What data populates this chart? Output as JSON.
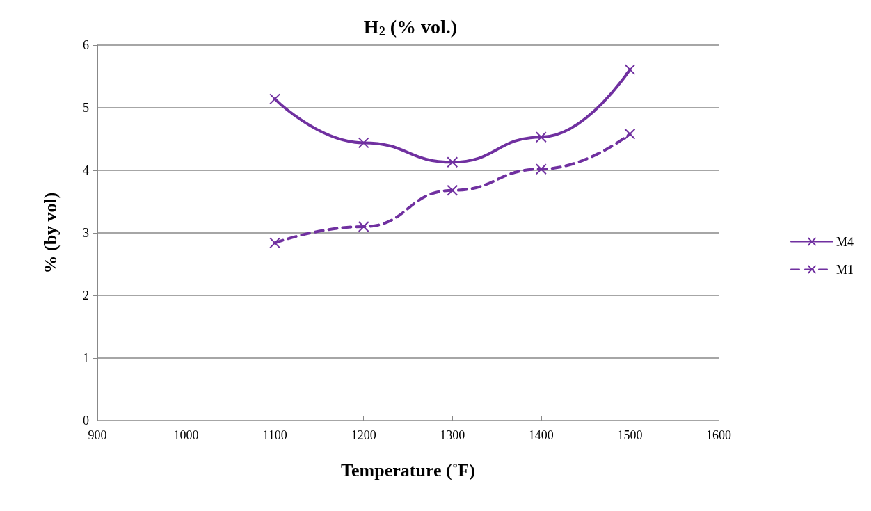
{
  "chart_data": {
    "type": "line",
    "title": "H$_{2}$ (% vol.)",
    "xlabel": "Temperature (˚F)",
    "ylabel": "% (by vol)",
    "x": [
      1100,
      1200,
      1300,
      1400,
      1500
    ],
    "series": [
      {
        "name": "M4",
        "color": "#7030a0",
        "line_style": "solid",
        "values": [
          5.14,
          4.44,
          4.13,
          4.53,
          5.61
        ]
      },
      {
        "name": "M1",
        "color": "#7030a0",
        "line_style": "dashed",
        "values": [
          2.84,
          3.1,
          3.68,
          4.02,
          4.58
        ]
      }
    ],
    "xlim": [
      900,
      1600
    ],
    "xticks": [
      900,
      1000,
      1100,
      1200,
      1300,
      1400,
      1500,
      1600
    ],
    "ylim": [
      0,
      6
    ],
    "yticks": [
      0,
      1,
      2,
      3,
      4,
      5,
      6
    ],
    "grid": "y",
    "legend": "right",
    "marker": "cross"
  }
}
